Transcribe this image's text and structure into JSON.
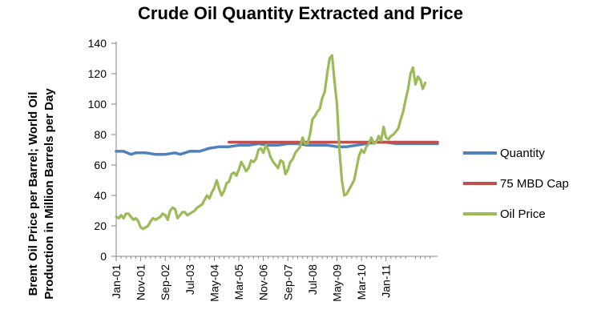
{
  "chart_data": {
    "type": "line",
    "title": "Crude Oil Quantity Extracted and Price",
    "ylabel_lines": [
      "Brent Oil Price per Barrel; World Oil",
      "Production in Million Barrels per Day"
    ],
    "xlabel": "",
    "ylim": [
      0,
      140
    ],
    "y_ticks": [
      "0",
      "20",
      "40",
      "60",
      "80",
      "100",
      "120",
      "140"
    ],
    "x_range": [
      0,
      131
    ],
    "x_tick_positions": [
      0,
      10,
      20,
      30,
      40,
      50,
      60,
      70,
      80,
      90,
      100,
      110
    ],
    "x_tick_labels": [
      "Jan-01",
      "Nov-01",
      "Sep-02",
      "Jul-03",
      "May-04",
      "Mar-05",
      "Nov-06",
      "Sep-07",
      "Jul-08",
      "May-09",
      "Mar-10",
      "Jan-11"
    ],
    "legend": [
      "Quantity",
      "75 MBD Cap",
      "Oil Price"
    ],
    "series": [
      {
        "name": "Quantity",
        "color": "#4f81bd",
        "points": [
          [
            0,
            69
          ],
          [
            3,
            69
          ],
          [
            6,
            67
          ],
          [
            8,
            68
          ],
          [
            12,
            68
          ],
          [
            16,
            67
          ],
          [
            20,
            67
          ],
          [
            24,
            68
          ],
          [
            26,
            67
          ],
          [
            30,
            69
          ],
          [
            34,
            69
          ],
          [
            38,
            71
          ],
          [
            42,
            72
          ],
          [
            46,
            72
          ],
          [
            50,
            73
          ],
          [
            54,
            73
          ],
          [
            58,
            74
          ],
          [
            62,
            73
          ],
          [
            66,
            73
          ],
          [
            70,
            74
          ],
          [
            74,
            74
          ],
          [
            78,
            73
          ],
          [
            82,
            73
          ],
          [
            86,
            73
          ],
          [
            90,
            72
          ],
          [
            94,
            72
          ],
          [
            98,
            73
          ],
          [
            102,
            74
          ],
          [
            106,
            75
          ],
          [
            110,
            75
          ],
          [
            114,
            74
          ],
          [
            118,
            74
          ],
          [
            122,
            74
          ],
          [
            126,
            74
          ],
          [
            131,
            74
          ]
        ]
      },
      {
        "name": "75 MBD Cap",
        "color": "#c0504d",
        "points": [
          [
            46,
            75
          ],
          [
            131,
            75
          ]
        ]
      },
      {
        "name": "Oil Price",
        "color": "#9bbb59",
        "points": [
          [
            0,
            26
          ],
          [
            1,
            25
          ],
          [
            2,
            27
          ],
          [
            3,
            25
          ],
          [
            4,
            28
          ],
          [
            5,
            28
          ],
          [
            6,
            26
          ],
          [
            7,
            24
          ],
          [
            8,
            25
          ],
          [
            9,
            23
          ],
          [
            10,
            19
          ],
          [
            11,
            18
          ],
          [
            12,
            19
          ],
          [
            13,
            20
          ],
          [
            14,
            23
          ],
          [
            15,
            25
          ],
          [
            16,
            24
          ],
          [
            17,
            25
          ],
          [
            18,
            26
          ],
          [
            19,
            28
          ],
          [
            20,
            27
          ],
          [
            21,
            24
          ],
          [
            22,
            30
          ],
          [
            23,
            32
          ],
          [
            24,
            31
          ],
          [
            25,
            25
          ],
          [
            26,
            27
          ],
          [
            27,
            29
          ],
          [
            28,
            29
          ],
          [
            29,
            27
          ],
          [
            30,
            28
          ],
          [
            31,
            29
          ],
          [
            32,
            30
          ],
          [
            33,
            32
          ],
          [
            34,
            33
          ],
          [
            35,
            34
          ],
          [
            36,
            37
          ],
          [
            37,
            40
          ],
          [
            38,
            38
          ],
          [
            39,
            42
          ],
          [
            40,
            45
          ],
          [
            41,
            50
          ],
          [
            42,
            44
          ],
          [
            43,
            40
          ],
          [
            44,
            43
          ],
          [
            45,
            48
          ],
          [
            46,
            49
          ],
          [
            47,
            54
          ],
          [
            48,
            55
          ],
          [
            49,
            53
          ],
          [
            50,
            57
          ],
          [
            51,
            62
          ],
          [
            52,
            59
          ],
          [
            53,
            56
          ],
          [
            54,
            58
          ],
          [
            55,
            63
          ],
          [
            56,
            62
          ],
          [
            57,
            64
          ],
          [
            58,
            70
          ],
          [
            59,
            71
          ],
          [
            60,
            68
          ],
          [
            61,
            73
          ],
          [
            62,
            70
          ],
          [
            63,
            65
          ],
          [
            64,
            62
          ],
          [
            65,
            60
          ],
          [
            66,
            58
          ],
          [
            67,
            63
          ],
          [
            68,
            62
          ],
          [
            69,
            54
          ],
          [
            70,
            57
          ],
          [
            71,
            62
          ],
          [
            72,
            64
          ],
          [
            73,
            68
          ],
          [
            74,
            70
          ],
          [
            75,
            72
          ],
          [
            76,
            78
          ],
          [
            77,
            74
          ],
          [
            78,
            74
          ],
          [
            79,
            80
          ],
          [
            80,
            90
          ],
          [
            81,
            92
          ],
          [
            82,
            95
          ],
          [
            83,
            97
          ],
          [
            84,
            104
          ],
          [
            85,
            108
          ],
          [
            86,
            120
          ],
          [
            87,
            130
          ],
          [
            88,
            132
          ],
          [
            89,
            115
          ],
          [
            90,
            100
          ],
          [
            91,
            70
          ],
          [
            92,
            50
          ],
          [
            93,
            40
          ],
          [
            94,
            41
          ],
          [
            95,
            44
          ],
          [
            96,
            47
          ],
          [
            97,
            50
          ],
          [
            98,
            58
          ],
          [
            99,
            66
          ],
          [
            100,
            70
          ],
          [
            101,
            68
          ],
          [
            102,
            72
          ],
          [
            103,
            74
          ],
          [
            104,
            78
          ],
          [
            105,
            74
          ],
          [
            106,
            75
          ],
          [
            107,
            79
          ],
          [
            108,
            76
          ],
          [
            109,
            85
          ],
          [
            110,
            78
          ],
          [
            111,
            77
          ],
          [
            112,
            79
          ],
          [
            113,
            80
          ],
          [
            114,
            82
          ],
          [
            115,
            84
          ],
          [
            116,
            90
          ],
          [
            117,
            95
          ],
          [
            118,
            103
          ],
          [
            119,
            110
          ],
          [
            120,
            120
          ],
          [
            121,
            124
          ],
          [
            122,
            113
          ],
          [
            123,
            118
          ],
          [
            124,
            116
          ],
          [
            125,
            110
          ],
          [
            126,
            114
          ]
        ]
      }
    ]
  }
}
